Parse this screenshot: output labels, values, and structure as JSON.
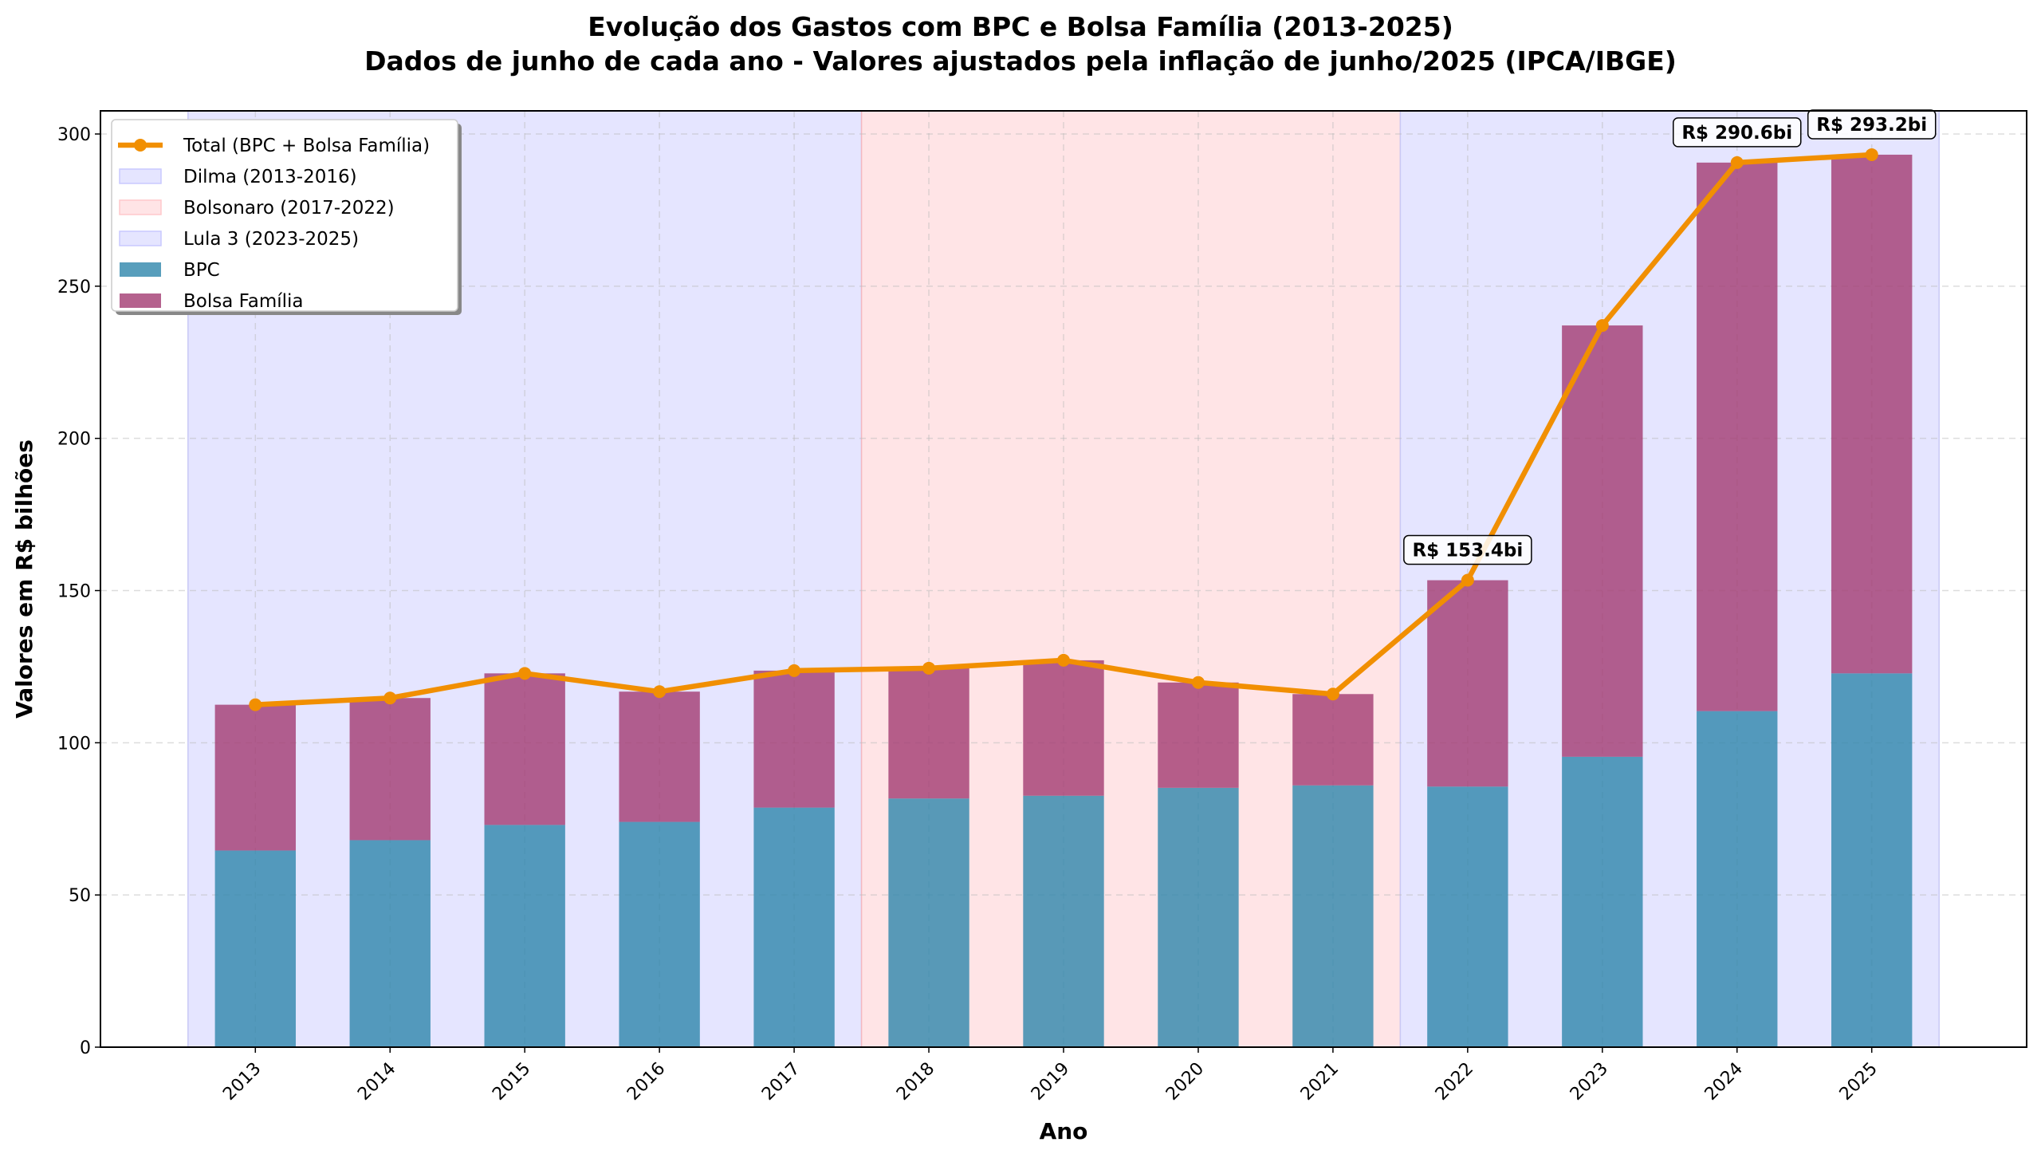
{
  "chart_data": {
    "type": "bar",
    "stacked": true,
    "title": "Evolução dos Gastos com BPC e Bolsa Família (2013-2025)",
    "subtitle": "Dados de junho de cada ano - Valores ajustados pela inflação de junho/2025 (IPCA/IBGE)",
    "xlabel": "Ano",
    "ylabel": "Valores em R$ bilhões",
    "ylim": [
      0,
      307.6
    ],
    "yticks": [
      0,
      50,
      100,
      150,
      200,
      250,
      300
    ],
    "grid": true,
    "legend_position": "top-left",
    "categories": [
      "2013",
      "2014",
      "2015",
      "2016",
      "2017",
      "2018",
      "2019",
      "2020",
      "2021",
      "2022",
      "2023",
      "2024",
      "2025"
    ],
    "series": [
      {
        "name": "BPC",
        "kind": "bar",
        "color": "#2E86AB",
        "values": [
          64.6,
          68.0,
          73.0,
          74.0,
          78.7,
          81.7,
          82.6,
          85.2,
          86.0,
          85.6,
          95.4,
          110.4,
          122.8
        ]
      },
      {
        "name": "Bolsa Família",
        "kind": "bar",
        "color": "#A23B72",
        "values": [
          47.9,
          46.7,
          49.8,
          42.8,
          45.0,
          42.8,
          44.5,
          34.6,
          30.0,
          67.8,
          141.7,
          180.2,
          170.4
        ]
      },
      {
        "name": "Total (BPC + Bolsa Família)",
        "kind": "line",
        "color": "#F18F01",
        "values": [
          112.5,
          114.7,
          122.8,
          116.8,
          123.7,
          124.5,
          127.1,
          119.8,
          116.0,
          153.4,
          237.1,
          290.6,
          293.2
        ]
      }
    ],
    "periods": [
      {
        "name": "Dilma (2013-2016)",
        "from": "2013",
        "to": "2017",
        "color": "#e5e5ff"
      },
      {
        "name": "Bolsonaro (2017-2022)",
        "from": "2018",
        "to": "2021",
        "color": "#ffe4e6"
      },
      {
        "name": "Lula 3 (2023-2025)",
        "from": "2022",
        "to": "2025",
        "color": "#e5e5ff"
      }
    ],
    "annotations": [
      {
        "year": "2022",
        "text": "R$ 153.4bi"
      },
      {
        "year": "2024",
        "text": "R$ 290.6bi"
      },
      {
        "year": "2025",
        "text": "R$ 293.2bi"
      }
    ]
  }
}
